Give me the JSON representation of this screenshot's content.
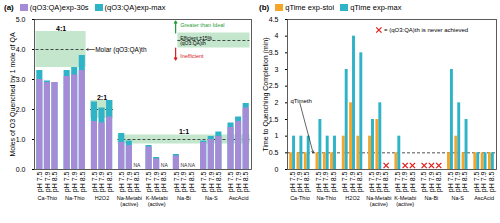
{
  "chart_data": [
    {
      "type": "bar",
      "title": "(a)",
      "y_label": "Moles of O3 Quenched by 1 mole of QA",
      "categories": [
        "Ca-Thio",
        "Na-Thio",
        "H2O2",
        "Na-Metabi (active)",
        "K-Metabi (active)",
        "Na-Bi",
        "Na-S",
        "AscAcid"
      ],
      "subcategories": [
        "pH 7.5",
        "pH 7.9",
        "pH 8.5"
      ],
      "stacked": false,
      "series": [
        {
          "name": "(qO3:QA)exp-30s",
          "color": "#a68bd6",
          "values": [
            [
              3.0,
              2.9,
              2.9
            ],
            [
              3.1,
              3.15,
              3.3
            ],
            [
              1.6,
              1.55,
              1.75
            ],
            [
              0.9,
              0.8,
              null
            ],
            [
              0.75,
              0.35,
              null
            ],
            [
              0.45,
              null,
              null
            ],
            [
              0.9,
              1.0,
              1.1
            ],
            [
              1.4,
              1.6,
              2.05
            ]
          ],
          "value_labels": [
            [
              null,
              null,
              null
            ],
            [
              null,
              null,
              null
            ],
            [
              null,
              null,
              null
            ],
            [
              null,
              null,
              "NA"
            ],
            [
              null,
              null,
              "NA"
            ],
            [
              null,
              "NA",
              "NA"
            ],
            [
              null,
              null,
              null
            ],
            [
              null,
              null,
              null
            ]
          ]
        },
        {
          "name": "(qO3:QA)exp-max",
          "color": "#2fb3c6",
          "values": [
            [
              3.3,
              2.95,
              2.9
            ],
            [
              3.3,
              3.4,
              3.8
            ],
            [
              2.25,
              2.05,
              2.3
            ],
            [
              1.2,
              0.95,
              null
            ],
            [
              0.8,
              0.4,
              null
            ],
            [
              0.5,
              null,
              null
            ],
            [
              0.95,
              1.1,
              1.25
            ],
            [
              1.55,
              1.75,
              2.2
            ]
          ]
        }
      ],
      "ylim": [
        0,
        5
      ],
      "yticks": [
        0,
        1,
        2,
        3,
        4,
        5
      ],
      "references": [
        {
          "label": "4:1",
          "value": 4,
          "low": 3.4,
          "high": 4.6,
          "categories": [
            "Ca-Thio",
            "Na-Thio"
          ]
        },
        {
          "label": "2:1",
          "value": 2,
          "low": 1.7,
          "high": 2.3,
          "categories": [
            "H2O2"
          ]
        },
        {
          "label": "1:1",
          "value": 1,
          "low": 0.85,
          "high": 1.15,
          "categories": [
            "Na-Metabi (active)",
            "K-Metabi (active)",
            "Na-Bi",
            "Na-S",
            "AscAcid"
          ]
        }
      ],
      "reference_note": "Molar (qO3:QA)th",
      "key": {
        "above": "Greater than Ideal",
        "middle": "Efficient ±15% (qO3:QA)th",
        "below": "Inefficient"
      }
    },
    {
      "type": "bar",
      "title": "(b)",
      "y_label": "Time to Quenching Completion (min)",
      "categories": [
        "Ca-Thio",
        "Na-Thio",
        "H2O2",
        "Na-Metabi (active)",
        "K-Metabi (active)",
        "Na-Bi",
        "Na-S",
        "AscAcid"
      ],
      "subcategories": [
        "pH 7.5",
        "pH 7.9",
        "pH 8.5"
      ],
      "series": [
        {
          "name": "qTime exp-stoi",
          "color": "#f5a52a",
          "values": [
            [
              0.5,
              0.5,
              0.5
            ],
            [
              0.5,
              0.5,
              0.5
            ],
            [
              1,
              2,
              1
            ],
            [
              1,
              1.5,
              null
            ],
            [
              0.5,
              null,
              null
            ],
            [
              null,
              null,
              null
            ],
            [
              0.5,
              1,
              0.5
            ],
            [
              0.5,
              0.5,
              0.5
            ]
          ]
        },
        {
          "name": "qTime exp-max",
          "color": "#2fb3c6",
          "values": [
            [
              1,
              1,
              1
            ],
            [
              1.5,
              1,
              1
            ],
            [
              3,
              4,
              3.5
            ],
            [
              1.5,
              2,
              null
            ],
            [
              1,
              null,
              null
            ],
            [
              null,
              null,
              null
            ],
            [
              3,
              2,
              1.5
            ],
            [
              0.5,
              0.5,
              0.5
            ]
          ]
        }
      ],
      "never_achieved": [
        [
          false,
          false,
          false
        ],
        [
          false,
          false,
          false
        ],
        [
          false,
          false,
          false
        ],
        [
          false,
          false,
          true
        ],
        [
          false,
          true,
          true
        ],
        [
          true,
          true,
          true
        ],
        [
          false,
          false,
          false
        ],
        [
          false,
          false,
          false
        ]
      ],
      "never_achieved_marker": "x",
      "never_achieved_color": "#e02020",
      "never_achieved_label": "= (qO3:QA)th is never achieved",
      "ylim": [
        0,
        4.5
      ],
      "yticks": [
        0,
        0.5,
        1,
        1.5,
        2,
        2.5,
        3,
        3.5,
        4,
        4.5
      ],
      "reference": {
        "value": 0.5,
        "label": "qTimeth"
      }
    }
  ]
}
